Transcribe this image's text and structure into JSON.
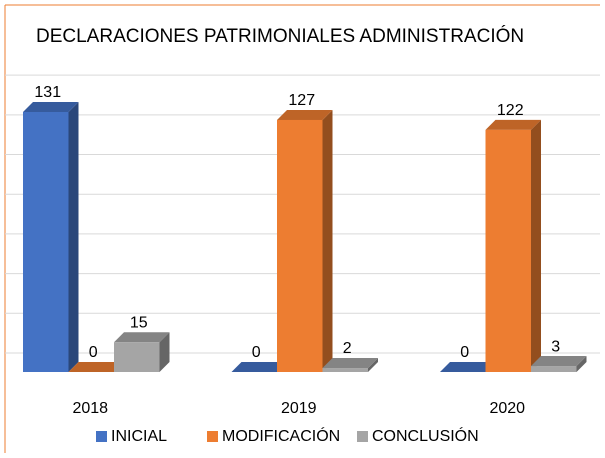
{
  "chart_data": {
    "type": "bar",
    "title": "DECLARACIONES PATRIMONIALES ADMINISTRACIÓN",
    "categories": [
      "2018",
      "2019",
      "2020"
    ],
    "series": [
      {
        "name": "INICIAL",
        "color": "#4472c4",
        "values": [
          131,
          0,
          0
        ]
      },
      {
        "name": "MODIFICACIÓN",
        "color": "#ed7d31",
        "values": [
          0,
          127,
          122
        ]
      },
      {
        "name": "CONCLUSIÓN",
        "color": "#a5a5a5",
        "values": [
          15,
          2,
          3
        ]
      }
    ],
    "ylim": [
      0,
      140
    ],
    "yticks": [
      0,
      20,
      40,
      60,
      80,
      100,
      120,
      140
    ],
    "grid": true,
    "legend": "bottom"
  }
}
